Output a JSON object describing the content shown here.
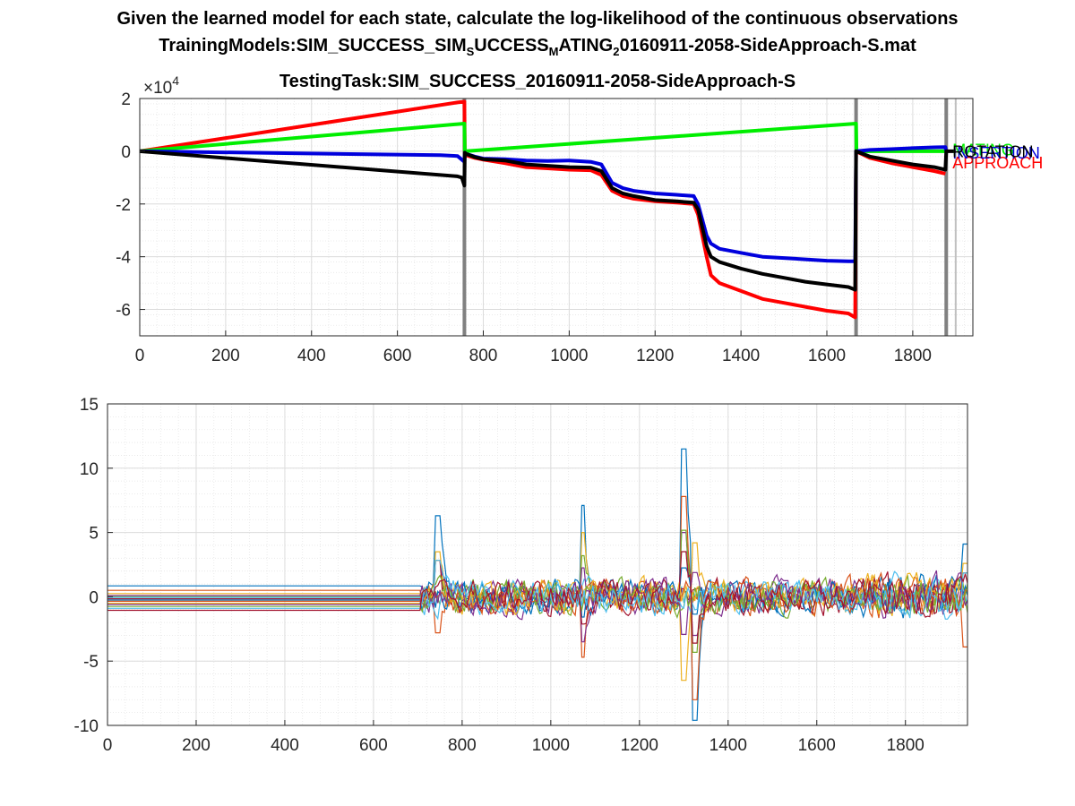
{
  "figure": {
    "title_line1": "Given the learned model for each state, calculate the log-likelihood of the continuous observations",
    "title_line2_parts": [
      "TrainingModels:SIM_SUCCESS_SIM",
      "S",
      "UCCESS",
      "M",
      "ATING",
      "2",
      "0160911-2058-SideApproach-S.mat"
    ],
    "title_line3": "TestingTask:SIM_SUCCESS_20160911-2058-SideApproach-S"
  },
  "chart_data": [
    {
      "type": "line",
      "xlim": [
        0,
        1940
      ],
      "ylim": [
        -70000,
        20000
      ],
      "x_ticks": [
        0,
        200,
        400,
        600,
        800,
        1000,
        1200,
        1400,
        1600,
        1800
      ],
      "y_ticks": [
        {
          "value": 20000,
          "label": "2"
        },
        {
          "value": 0,
          "label": "0"
        },
        {
          "value": -20000,
          "label": "-2"
        },
        {
          "value": -40000,
          "label": "-4"
        },
        {
          "value": -60000,
          "label": "-6"
        }
      ],
      "exponent_label": "×10",
      "exponent_power": "4",
      "grid": true,
      "minor_grid": true,
      "vertical_lines": [
        {
          "x": 756,
          "color": "#808080"
        },
        {
          "x": 1668,
          "color": "#808080"
        },
        {
          "x": 1878,
          "color": "#808080"
        },
        {
          "x": 1900,
          "color": "#c0c0c0"
        }
      ],
      "series": [
        {
          "color": "#ff0000",
          "values": [
            [
              0,
              0
            ],
            [
              740,
              18500
            ],
            [
              756,
              18800
            ],
            [
              757,
              -1000
            ],
            [
              760,
              -1500
            ],
            [
              780,
              -2500
            ],
            [
              800,
              -3200
            ],
            [
              850,
              -4500
            ],
            [
              900,
              -6000
            ],
            [
              950,
              -6500
            ],
            [
              1000,
              -7000
            ],
            [
              1050,
              -7200
            ],
            [
              1075,
              -9000
            ],
            [
              1100,
              -15000
            ],
            [
              1125,
              -17000
            ],
            [
              1150,
              -18000
            ],
            [
              1200,
              -19000
            ],
            [
              1250,
              -19500
            ],
            [
              1290,
              -20000
            ],
            [
              1300,
              -24000
            ],
            [
              1320,
              -40000
            ],
            [
              1330,
              -47000
            ],
            [
              1350,
              -50000
            ],
            [
              1400,
              -53000
            ],
            [
              1450,
              -56000
            ],
            [
              1500,
              -57500
            ],
            [
              1550,
              -59000
            ],
            [
              1600,
              -60500
            ],
            [
              1650,
              -61500
            ],
            [
              1666,
              -63000
            ],
            [
              1668,
              0
            ],
            [
              1700,
              -2500
            ],
            [
              1750,
              -4500
            ],
            [
              1800,
              -6000
            ],
            [
              1850,
              -7500
            ],
            [
              1876,
              -8500
            ]
          ]
        },
        {
          "color": "#00ee00",
          "values": [
            [
              0,
              0
            ],
            [
              756,
              10500
            ],
            [
              757,
              0
            ],
            [
              1668,
              10500
            ],
            [
              1669,
              0
            ],
            [
              1876,
              0
            ]
          ]
        },
        {
          "color": "#0000dd",
          "values": [
            [
              0,
              0
            ],
            [
              700,
              -1500
            ],
            [
              740,
              -1800
            ],
            [
              756,
              -4000
            ],
            [
              757,
              -500
            ],
            [
              760,
              -1000
            ],
            [
              780,
              -2000
            ],
            [
              800,
              -2800
            ],
            [
              850,
              -3000
            ],
            [
              900,
              -3500
            ],
            [
              950,
              -3700
            ],
            [
              1000,
              -3500
            ],
            [
              1050,
              -4000
            ],
            [
              1075,
              -5000
            ],
            [
              1100,
              -12000
            ],
            [
              1125,
              -14000
            ],
            [
              1150,
              -15000
            ],
            [
              1200,
              -16000
            ],
            [
              1250,
              -16500
            ],
            [
              1290,
              -17000
            ],
            [
              1300,
              -20000
            ],
            [
              1320,
              -32000
            ],
            [
              1330,
              -35000
            ],
            [
              1350,
              -37000
            ],
            [
              1400,
              -38500
            ],
            [
              1450,
              -40000
            ],
            [
              1500,
              -40500
            ],
            [
              1550,
              -41000
            ],
            [
              1600,
              -41500
            ],
            [
              1650,
              -41700
            ],
            [
              1666,
              -41700
            ],
            [
              1668,
              0
            ],
            [
              1700,
              500
            ],
            [
              1750,
              800
            ],
            [
              1800,
              1200
            ],
            [
              1850,
              1500
            ],
            [
              1876,
              1600
            ],
            [
              1878,
              0
            ]
          ]
        },
        {
          "color": "#000000",
          "values": [
            [
              0,
              0
            ],
            [
              740,
              -9500
            ],
            [
              750,
              -10000
            ],
            [
              756,
              -13000
            ],
            [
              757,
              -500
            ],
            [
              760,
              -1000
            ],
            [
              780,
              -2200
            ],
            [
              800,
              -3000
            ],
            [
              850,
              -3500
            ],
            [
              900,
              -5000
            ],
            [
              950,
              -5500
            ],
            [
              1000,
              -6000
            ],
            [
              1050,
              -6200
            ],
            [
              1075,
              -7500
            ],
            [
              1100,
              -14000
            ],
            [
              1125,
              -16000
            ],
            [
              1150,
              -17000
            ],
            [
              1200,
              -18500
            ],
            [
              1250,
              -19000
            ],
            [
              1290,
              -19500
            ],
            [
              1300,
              -22000
            ],
            [
              1320,
              -36000
            ],
            [
              1330,
              -40000
            ],
            [
              1350,
              -42000
            ],
            [
              1400,
              -44500
            ],
            [
              1450,
              -46500
            ],
            [
              1500,
              -48000
            ],
            [
              1550,
              -49500
            ],
            [
              1600,
              -50500
            ],
            [
              1650,
              -51500
            ],
            [
              1666,
              -52500
            ],
            [
              1668,
              0
            ],
            [
              1700,
              -2000
            ],
            [
              1750,
              -3500
            ],
            [
              1800,
              -5000
            ],
            [
              1850,
              -6000
            ],
            [
              1876,
              -7000
            ],
            [
              1878,
              0
            ],
            [
              1900,
              0
            ]
          ]
        }
      ],
      "end_labels": [
        {
          "text": "APPROACH",
          "color": "#ff0000",
          "y": -4500
        },
        {
          "text": "MATING",
          "color": "#00ee00",
          "y": 400
        },
        {
          "text": "INSERTION",
          "color": "#0000dd",
          "y": -700
        },
        {
          "text": "ROTATION",
          "color": "#000000",
          "y": -200
        }
      ]
    },
    {
      "type": "line",
      "xlim": [
        0,
        1940
      ],
      "ylim": [
        -10,
        15
      ],
      "x_ticks": [
        0,
        200,
        400,
        600,
        800,
        1000,
        1200,
        1400,
        1600,
        1800
      ],
      "y_ticks": [
        {
          "value": 15,
          "label": "15"
        },
        {
          "value": 10,
          "label": "10"
        },
        {
          "value": 5,
          "label": "5"
        },
        {
          "value": 0,
          "label": "0"
        },
        {
          "value": -5,
          "label": "-5"
        },
        {
          "value": -10,
          "label": "-10"
        }
      ],
      "grid": true,
      "minor_grid": true,
      "series_count": 14,
      "color_order": [
        "#0072bd",
        "#d95319",
        "#edb120",
        "#7e2f8e",
        "#77ac30",
        "#4dbeee",
        "#a2142f"
      ],
      "baselines": [
        0.85,
        0.5,
        0.25,
        0.1,
        0,
        -0.05,
        -0.15,
        -0.25,
        -0.35,
        -0.5,
        -0.6,
        -0.75,
        -0.9,
        -1.05
      ],
      "quiet_until": 710,
      "spikes": [
        {
          "x": 745,
          "values": [
            6.3,
            -2.8,
            3.5
          ]
        },
        {
          "x": 1072,
          "values": [
            7.1,
            -4.7,
            5.0,
            -3.5
          ]
        },
        {
          "x": 1300,
          "values": [
            11.5,
            7.8,
            -6.5,
            5.0
          ]
        },
        {
          "x": 1325,
          "values": [
            -9.6,
            -8.0,
            4.2,
            -3.0
          ]
        },
        {
          "x": 1935,
          "values": [
            4.1,
            -3.9,
            2.6
          ]
        }
      ]
    }
  ]
}
